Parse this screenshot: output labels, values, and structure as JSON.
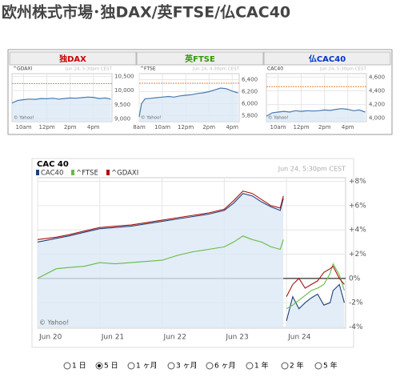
{
  "header": {
    "title": "欧州株式市場･独DAX/英FTSE/仏CAC40"
  },
  "chart_data": [
    {
      "type": "line",
      "title": "独DAX",
      "title_color": "#cc0000",
      "timestamp": "Jun 24, 5:30pm CEST",
      "credit": "© Yahoo!",
      "x": [
        9,
        9.5,
        10,
        10.5,
        11,
        11.5,
        12,
        12.5,
        13,
        13.5,
        14,
        14.5,
        15,
        15.5,
        16,
        16.5,
        17,
        17.5
      ],
      "series": [
        {
          "name": "^GDAXI",
          "color": "#4a7ab0",
          "values": [
            9560,
            9650,
            9680,
            9700,
            9690,
            9720,
            9710,
            9730,
            9700,
            9720,
            9740,
            9730,
            9750,
            9770,
            9760,
            9720,
            9740,
            9700
          ]
        }
      ],
      "reference_line": 10250,
      "xlim": [
        9,
        17.6
      ],
      "xticks": [
        {
          "value": 10,
          "label": "10am"
        },
        {
          "value": 12,
          "label": "12pm"
        },
        {
          "value": 14,
          "label": "2pm"
        },
        {
          "value": 16,
          "label": "4pm"
        }
      ],
      "ylim": [
        8900,
        10600
      ],
      "yticks": [
        {
          "value": 9000,
          "label": "9,000"
        },
        {
          "value": 9500,
          "label": "9,500"
        },
        {
          "value": 10000,
          "label": "10,000"
        },
        {
          "value": 10500,
          "label": "10,500"
        }
      ]
    },
    {
      "type": "line",
      "title": "英FTSE",
      "title_color": "#339900",
      "timestamp": "Jun 24, 4:30pm CEST",
      "credit": "© Yahoo!",
      "x": [
        8,
        8.2,
        8.5,
        9,
        9.5,
        10,
        10.5,
        11,
        11.5,
        12,
        12.5,
        13,
        13.5,
        14,
        14.5,
        15,
        15.5,
        16,
        16.5
      ],
      "series": [
        {
          "name": "^FTSE",
          "color": "#4a7ab0",
          "values": [
            5780,
            6000,
            6080,
            6090,
            6100,
            6110,
            6120,
            6110,
            6130,
            6140,
            6150,
            6170,
            6180,
            6200,
            6230,
            6260,
            6250,
            6210,
            6180
          ]
        }
      ],
      "reference_line": 6340,
      "xlim": [
        8,
        16.6
      ],
      "xticks": [
        {
          "value": 8,
          "label": "8am"
        },
        {
          "value": 10,
          "label": "10am"
        },
        {
          "value": 12,
          "label": "12pm"
        },
        {
          "value": 14,
          "label": "2pm"
        },
        {
          "value": 16,
          "label": "4pm"
        }
      ],
      "ylim": [
        5700,
        6500
      ],
      "yticks": [
        {
          "value": 5800,
          "label": "5,800"
        },
        {
          "value": 6000,
          "label": "6,000"
        },
        {
          "value": 6200,
          "label": "6,200"
        },
        {
          "value": 6400,
          "label": "6,400"
        }
      ]
    },
    {
      "type": "line",
      "title": "仏CAC40",
      "title_color": "#0033cc",
      "timestamp": "Jun 24, 5:30pm CEST",
      "credit": "© Yahoo!",
      "x": [
        9,
        9.5,
        10,
        10.5,
        11,
        11.5,
        12,
        12.5,
        13,
        13.5,
        14,
        14.5,
        15,
        15.5,
        16,
        16.5,
        17,
        17.5
      ],
      "series": [
        {
          "name": "CAC40",
          "color": "#4a7ab0",
          "values": [
            4030,
            4080,
            4090,
            4100,
            4090,
            4110,
            4100,
            4110,
            4105,
            4110,
            4120,
            4115,
            4130,
            4140,
            4130,
            4110,
            4120,
            4090
          ]
        }
      ],
      "reference_line": 4460,
      "xlim": [
        9,
        17.6
      ],
      "xticks": [
        {
          "value": 10,
          "label": "10am"
        },
        {
          "value": 12,
          "label": "12pm"
        },
        {
          "value": 14,
          "label": "2pm"
        },
        {
          "value": 16,
          "label": "4pm"
        }
      ],
      "ylim": [
        3950,
        4650
      ],
      "yticks": [
        {
          "value": 4000,
          "label": "4,000"
        },
        {
          "value": 4200,
          "label": "4,200"
        },
        {
          "value": 4400,
          "label": "4,400"
        },
        {
          "value": 4600,
          "label": "4,600"
        }
      ]
    },
    {
      "type": "line",
      "title": "CAC 40",
      "timestamp": "Jun 24, 5:30pm CEST",
      "credit": "© Yahoo!",
      "legend": true,
      "zero_line": true,
      "x": [
        0,
        0.3,
        0.5,
        0.75,
        1,
        1.25,
        1.5,
        1.75,
        2,
        2.25,
        2.5,
        2.75,
        3,
        3.15,
        3.3,
        3.45,
        3.6,
        3.75,
        3.9,
        3.95,
        3.97,
        4,
        4.1,
        4.2,
        4.3,
        4.4,
        4.5,
        4.6,
        4.7,
        4.75,
        4.85,
        4.93
      ],
      "series": [
        {
          "name": "CAC40",
          "color": "#1f3f7a",
          "values": [
            3.0,
            3.3,
            3.5,
            3.8,
            4.1,
            4.2,
            4.3,
            4.5,
            4.7,
            4.9,
            5.1,
            5.3,
            5.6,
            6.2,
            7.0,
            6.8,
            6.3,
            5.9,
            5.6,
            6.6,
            null,
            -3.5,
            -1.5,
            -2.5,
            -2.0,
            -1.6,
            -1.3,
            -2.2,
            -2.0,
            -1.0,
            -0.5,
            -2.0
          ]
        },
        {
          "name": "^FTSE",
          "color": "#66bb44",
          "values": [
            0,
            0.8,
            0.9,
            1.0,
            1.3,
            1.2,
            1.3,
            1.4,
            1.5,
            1.9,
            2.2,
            2.4,
            2.6,
            3.0,
            3.5,
            3.2,
            3.0,
            2.6,
            2.4,
            3.2,
            null,
            -2.5,
            -2.2,
            -1.8,
            -1.4,
            -1.0,
            -0.8,
            -0.5,
            0.4,
            1.2,
            0.3,
            -1.0
          ]
        },
        {
          "name": "^GDAXI",
          "color": "#aa1111",
          "values": [
            3.2,
            3.4,
            3.6,
            3.9,
            4.2,
            4.3,
            4.4,
            4.6,
            4.8,
            5.0,
            5.2,
            5.4,
            5.7,
            6.4,
            7.2,
            7.0,
            6.5,
            6.0,
            5.8,
            6.8,
            null,
            -1.5,
            -0.5,
            0,
            -0.8,
            -0.5,
            -0.2,
            0.5,
            0.8,
            1.0,
            0,
            -0.5
          ]
        }
      ],
      "xlim": [
        0,
        4.95
      ],
      "xticks": [
        {
          "value": 0,
          "label": "Jun 20"
        },
        {
          "value": 1,
          "label": "Jun 21"
        },
        {
          "value": 2,
          "label": "Jun 22"
        },
        {
          "value": 3,
          "label": "Jun 23"
        },
        {
          "value": 4,
          "label": "Jun 24"
        }
      ],
      "ylim": [
        -4.1,
        8.3
      ],
      "yticks": [
        {
          "value": 8,
          "label": "+8%"
        },
        {
          "value": 6,
          "label": "+6%"
        },
        {
          "value": 4,
          "label": "+4%"
        },
        {
          "value": 2,
          "label": "+2%"
        },
        {
          "value": 0,
          "label": "0%"
        },
        {
          "value": -2,
          "label": "-2%"
        },
        {
          "value": -4,
          "label": "-4%"
        }
      ]
    }
  ],
  "controls": {
    "options": [
      "1 日",
      "5 日",
      "1 ヶ月",
      "3 ヶ月",
      "6 ヶ月",
      "1 年",
      "2 年",
      "5 年"
    ],
    "selected": 1
  }
}
